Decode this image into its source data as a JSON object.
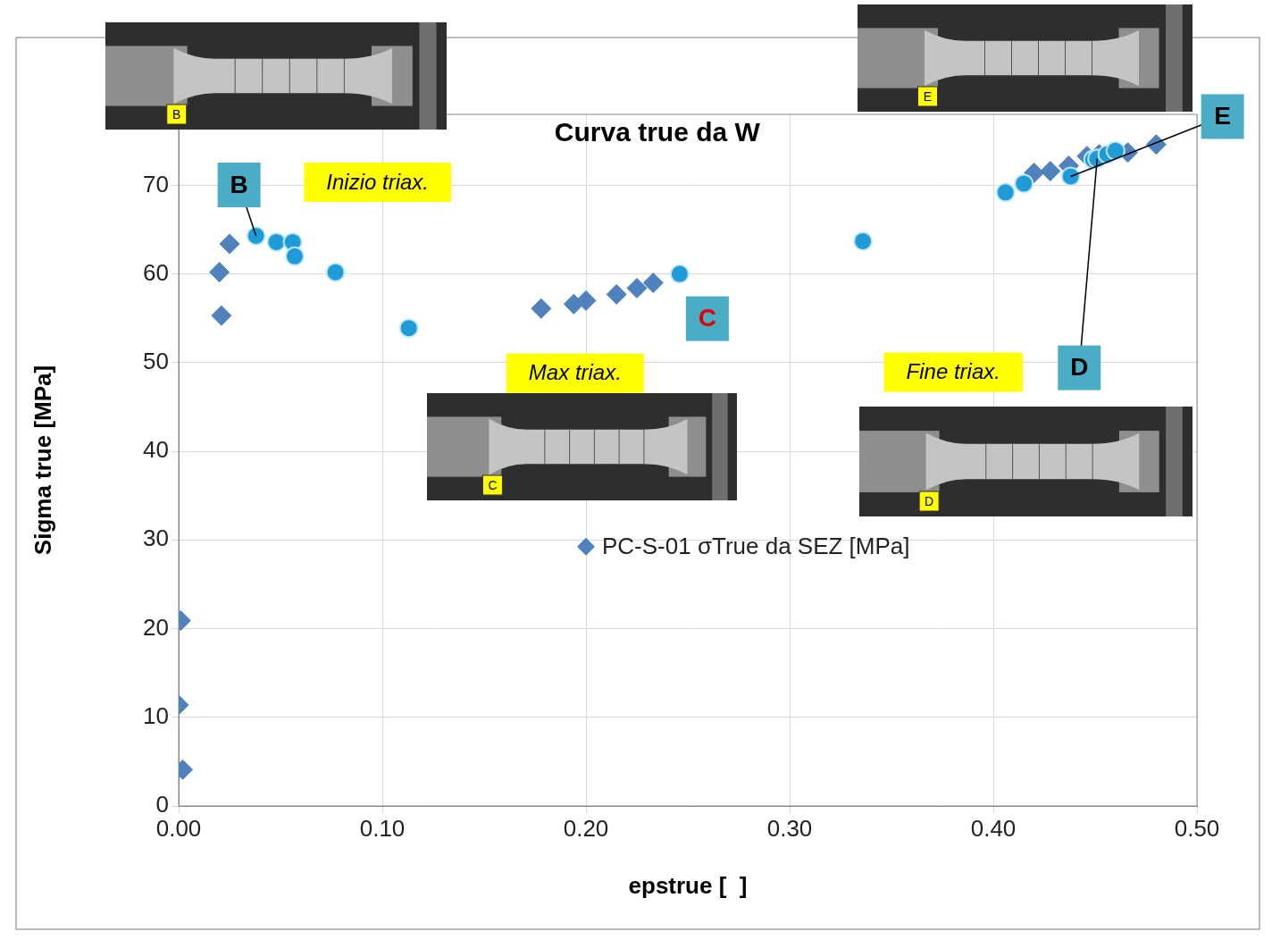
{
  "chart_data": {
    "type": "scatter",
    "title": "Curva true da W",
    "x_label": "epstrue [  ]",
    "y_label": "Sigma true [MPa]",
    "xlim": [
      0,
      0.5
    ],
    "xticks": [
      {
        "value": 0,
        "label": "0.00"
      },
      {
        "value": 0.1,
        "label": "0.10"
      },
      {
        "value": 0.2,
        "label": "0.20"
      },
      {
        "value": 0.3,
        "label": "0.30"
      },
      {
        "value": 0.4,
        "label": "0.40"
      },
      {
        "value": 0.5,
        "label": "0.50"
      }
    ],
    "ylim": [
      0,
      78
    ],
    "yticks": [
      0,
      10,
      20,
      30,
      40,
      50,
      60,
      70
    ],
    "grid": true,
    "legend": "right",
    "series": [
      {
        "name": "PC-S-01 σTrue da SEZ [MPa]",
        "color": "#4f81bd",
        "marker": "diamond",
        "x": [
          0.001,
          0.0,
          0.002,
          0.02,
          0.021,
          0.025,
          0.178,
          0.194,
          0.2,
          0.215,
          0.225,
          0.233,
          0.42,
          0.428,
          0.437,
          0.446,
          0.452,
          0.458,
          0.466,
          0.48
        ],
        "values": [
          20.9,
          11.4,
          4.1,
          60.2,
          55.3,
          63.4,
          56.1,
          56.6,
          57.0,
          57.7,
          58.4,
          59.0,
          71.4,
          71.6,
          72.2,
          73.3,
          73.5,
          73.7,
          73.7,
          74.6
        ]
      },
      {
        "color": "#1f9bd7",
        "marker": "circle",
        "x": [
          0.038,
          0.048,
          0.056,
          0.057,
          0.077,
          0.113,
          0.246,
          0.336,
          0.406,
          0.415,
          0.438,
          0.449,
          0.451,
          0.456,
          0.46
        ],
        "values": [
          64.3,
          63.6,
          63.6,
          62.0,
          60.2,
          53.9,
          60.0,
          63.7,
          69.2,
          70.2,
          71.0,
          72.9,
          73.0,
          73.5,
          73.9
        ]
      }
    ],
    "annotations": [
      {
        "label": "B",
        "text": "Inizio triax.",
        "x": 0.038,
        "y": 64.3,
        "color": "#000000"
      },
      {
        "label": "C",
        "text": "Max triax.",
        "x": 0.246,
        "y": 60.0,
        "color": "#e00000"
      },
      {
        "label": "D",
        "text": "Fine triax.",
        "x": 0.451,
        "y": 73.0,
        "color": "#000000"
      },
      {
        "label": "E",
        "x": 0.438,
        "y": 71.0,
        "color": "#000000"
      }
    ],
    "photos": [
      "B",
      "E",
      "C",
      "D"
    ]
  }
}
